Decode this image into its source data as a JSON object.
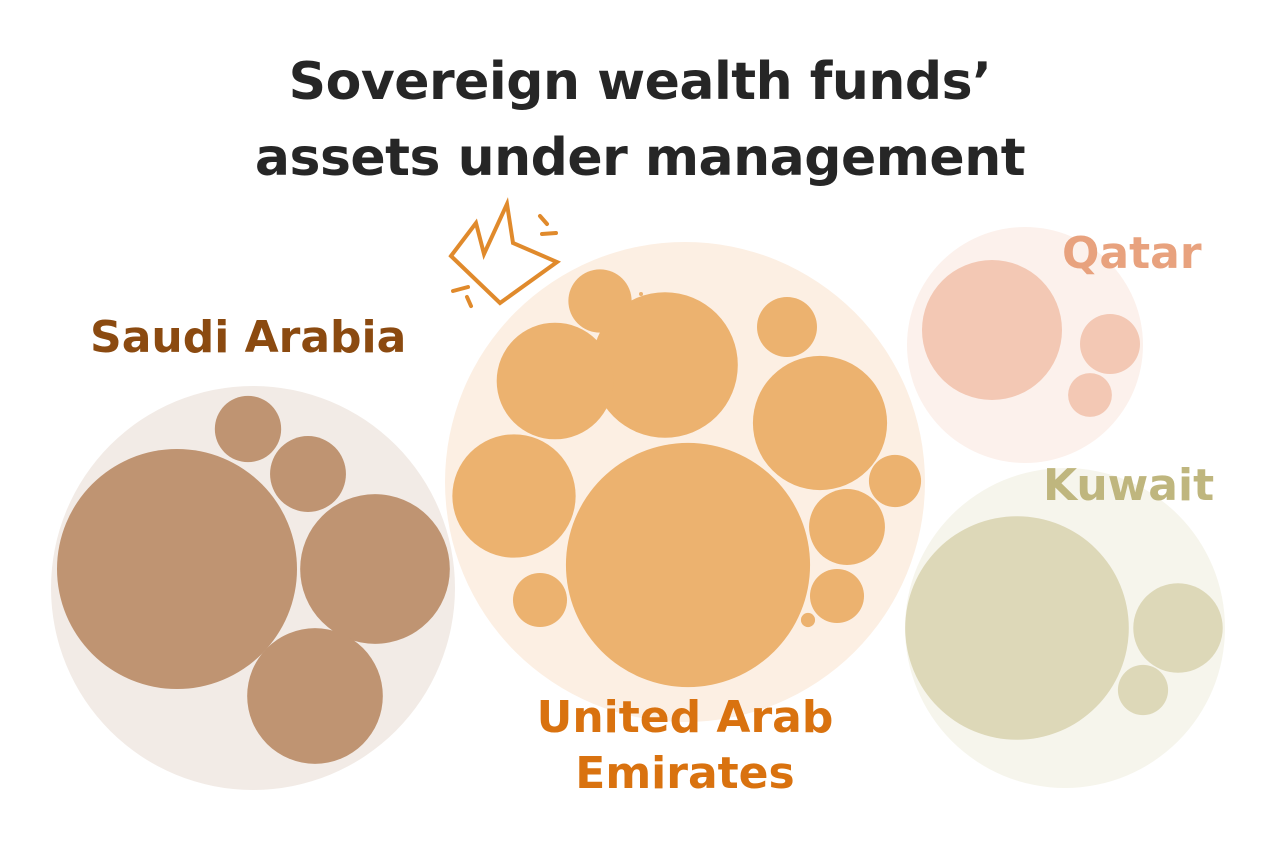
{
  "chart_data": {
    "type": "packed-bubble",
    "title": "Sovereign wealth funds’ assets under management",
    "title_lines": [
      "Sovereign wealth funds’",
      "assets under management"
    ],
    "value_note": "relative fund sizes estimated from bubble area (no values printed)",
    "highlight": {
      "country": "United Arab Emirates",
      "icon": "crown-icon"
    },
    "countries": [
      {
        "name": "Saudi Arabia",
        "label_lines": [
          "Saudi Arabia"
        ],
        "color": "#bf9472",
        "bg": "#f2ebe6",
        "label_color": "#8b4a10",
        "funds": [
          144,
          11,
          14.4,
          56,
          46
        ]
      },
      {
        "name": "United Arab Emirates",
        "label_lines": [
          "United Arab",
          "Emirates"
        ],
        "color": "#ecb26f",
        "bg": "#fcefe3",
        "label_color": "#d9720f",
        "funds": [
          149,
          53,
          34,
          45,
          38,
          10,
          9,
          6.8,
          14.4,
          7.3,
          7.3,
          0.5,
          0.04
        ]
      },
      {
        "name": "Qatar",
        "label_lines": [
          "Qatar"
        ],
        "color": "#f3c8b4",
        "bg": "#fcf1ec",
        "label_color": "#e8a27e",
        "funds": [
          49,
          9,
          4.8
        ]
      },
      {
        "name": "Kuwait",
        "label_lines": [
          "Kuwait"
        ],
        "color": "#ddd8b8",
        "bg": "#f6f5ec",
        "label_color": "#bfb67e",
        "funds": [
          125,
          20,
          6.3
        ]
      }
    ]
  }
}
